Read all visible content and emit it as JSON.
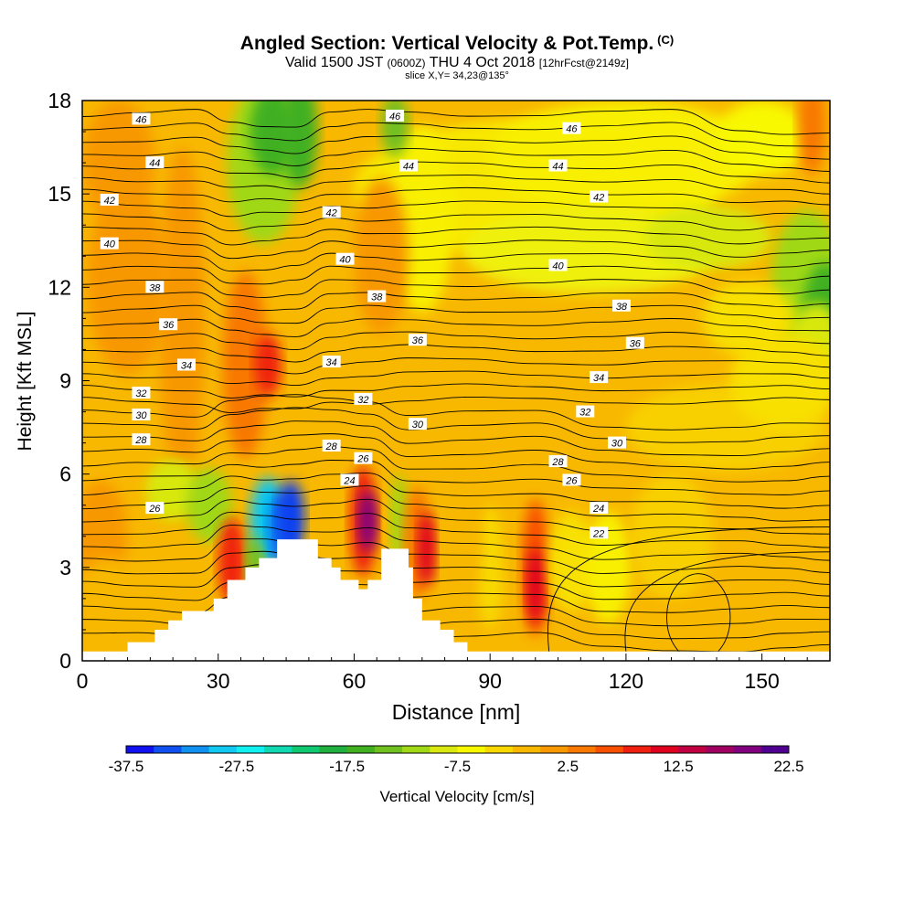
{
  "title": "Angled Section: Vertical Velocity & Pot.Temp.",
  "title_units": "(C)",
  "subtitle_main": "Valid 1500 JST",
  "subtitle_zulu": "(0600Z)",
  "subtitle_date": "THU 4 Oct 2018",
  "subtitle_fcst": "[12hrFcst@2149z]",
  "slice_text": "slice X,Y= 34,23@135°",
  "chart_data": {
    "type": "heatmap",
    "xlabel": "Distance [nm]",
    "ylabel": "Height [Kft MSL]",
    "xlim": [
      0,
      165
    ],
    "ylim": [
      0,
      18
    ],
    "x_ticks": [
      0,
      30,
      60,
      90,
      120,
      150
    ],
    "y_ticks": [
      0,
      3,
      6,
      9,
      12,
      15,
      18
    ],
    "colorbar": {
      "label": "Vertical Velocity [cm/s]",
      "tick_labels": [
        "-37.5",
        "-27.5",
        "-17.5",
        "-7.5",
        "2.5",
        "12.5",
        "22.5"
      ],
      "range": [
        -37.5,
        22.5
      ],
      "colors": [
        "#1010f0",
        "#1050f0",
        "#1090f0",
        "#10c8f0",
        "#10f0f0",
        "#10d8b0",
        "#10c870",
        "#20b040",
        "#40b020",
        "#70c020",
        "#a0d818",
        "#d8e810",
        "#f8f800",
        "#f8d800",
        "#f8b800",
        "#f89800",
        "#f87800",
        "#f85000",
        "#f02010",
        "#e00020",
        "#c00040",
        "#a00060",
        "#800080",
        "#500090"
      ]
    },
    "theta_contour_labels": [
      {
        "value": "46",
        "x": 13,
        "z": 17.4
      },
      {
        "value": "46",
        "x": 69,
        "z": 17.5
      },
      {
        "value": "46",
        "x": 108,
        "z": 17.1
      },
      {
        "value": "44",
        "x": 16,
        "z": 16.0
      },
      {
        "value": "44",
        "x": 72,
        "z": 15.9
      },
      {
        "value": "44",
        "x": 105,
        "z": 15.9
      },
      {
        "value": "42",
        "x": 6,
        "z": 14.8
      },
      {
        "value": "42",
        "x": 55,
        "z": 14.4
      },
      {
        "value": "42",
        "x": 114,
        "z": 14.9
      },
      {
        "value": "40",
        "x": 6,
        "z": 13.4
      },
      {
        "value": "40",
        "x": 58,
        "z": 12.9
      },
      {
        "value": "40",
        "x": 105,
        "z": 12.7
      },
      {
        "value": "38",
        "x": 16,
        "z": 12.0
      },
      {
        "value": "38",
        "x": 65,
        "z": 11.7
      },
      {
        "value": "38",
        "x": 119,
        "z": 11.4
      },
      {
        "value": "36",
        "x": 19,
        "z": 10.8
      },
      {
        "value": "36",
        "x": 74,
        "z": 10.3
      },
      {
        "value": "36",
        "x": 122,
        "z": 10.2
      },
      {
        "value": "34",
        "x": 23,
        "z": 9.5
      },
      {
        "value": "34",
        "x": 55,
        "z": 9.6
      },
      {
        "value": "34",
        "x": 114,
        "z": 9.1
      },
      {
        "value": "32",
        "x": 13,
        "z": 8.6
      },
      {
        "value": "32",
        "x": 62,
        "z": 8.4
      },
      {
        "value": "32",
        "x": 111,
        "z": 8.0
      },
      {
        "value": "30",
        "x": 13,
        "z": 7.9
      },
      {
        "value": "30",
        "x": 74,
        "z": 7.6
      },
      {
        "value": "30",
        "x": 118,
        "z": 7.0
      },
      {
        "value": "28",
        "x": 13,
        "z": 7.1
      },
      {
        "value": "28",
        "x": 55,
        "z": 6.9
      },
      {
        "value": "28",
        "x": 105,
        "z": 6.4
      },
      {
        "value": "26",
        "x": 62,
        "z": 6.5
      },
      {
        "value": "26",
        "x": 108,
        "z": 5.8
      },
      {
        "value": "26",
        "x": 16,
        "z": 4.9
      },
      {
        "value": "24",
        "x": 59,
        "z": 5.8
      },
      {
        "value": "24",
        "x": 114,
        "z": 4.9
      },
      {
        "value": "22",
        "x": 114,
        "z": 4.1
      }
    ]
  }
}
